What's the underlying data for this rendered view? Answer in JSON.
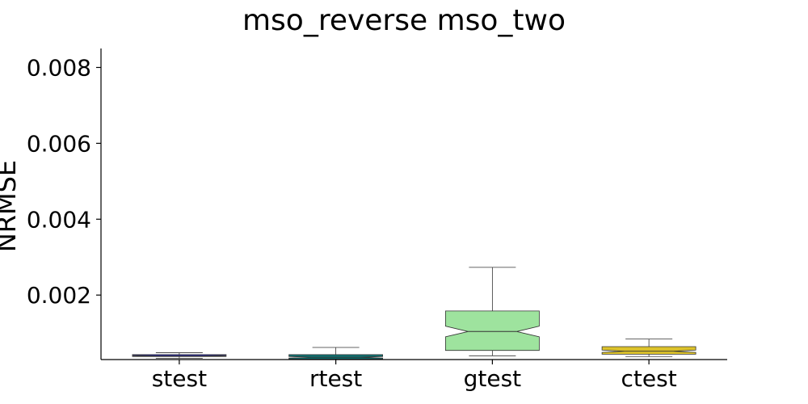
{
  "chart_data": {
    "type": "box",
    "title": "mso_reverse mso_two",
    "xlabel": "",
    "ylabel": "NRMSE",
    "ylim": [
      0.0003,
      0.0085
    ],
    "yticks": [
      0.002,
      0.004,
      0.006,
      0.008
    ],
    "ytick_labels": [
      "0.002",
      "0.004",
      "0.006",
      "0.008"
    ],
    "grid": false,
    "notched": true,
    "categories": [
      "stest",
      "rtest",
      "gtest",
      "ctest"
    ],
    "boxes": [
      {
        "category": "stest",
        "color": "#1f1fbf",
        "whisker_low": 0.00033,
        "q1": 0.00038,
        "median": 0.0004,
        "q3": 0.00043,
        "whisker_high": 0.00048,
        "notch_low": 0.00039,
        "notch_high": 0.00041
      },
      {
        "category": "rtest",
        "color": "#0f6f6f",
        "whisker_low": 0.0003,
        "q1": 0.00031,
        "median": 0.00036,
        "q3": 0.00043,
        "whisker_high": 0.00062,
        "notch_low": 0.00034,
        "notch_high": 0.00038
      },
      {
        "category": "gtest",
        "color": "#9ee39e",
        "whisker_low": 0.0004,
        "q1": 0.00054,
        "median": 0.00104,
        "q3": 0.00158,
        "whisker_high": 0.00273,
        "notch_low": 0.0009,
        "notch_high": 0.00118
      },
      {
        "category": "ctest",
        "color": "#dcc22a",
        "whisker_low": 0.00038,
        "q1": 0.00044,
        "median": 0.00052,
        "q3": 0.00064,
        "whisker_high": 0.00084,
        "notch_low": 0.00049,
        "notch_high": 0.00055
      }
    ]
  }
}
